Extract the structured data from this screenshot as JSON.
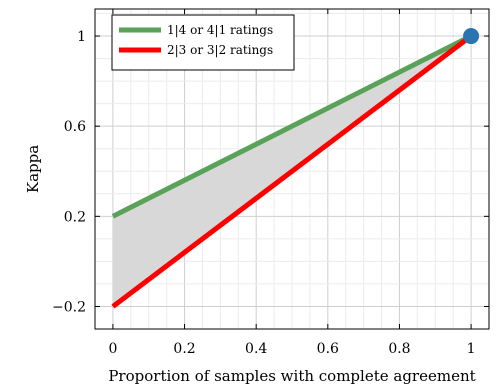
{
  "chart_data": {
    "type": "line",
    "xlabel": "Proportion of samples with complete agreement",
    "ylabel": "Kappa",
    "xlim": [
      -0.05,
      1.05
    ],
    "ylim": [
      -0.3,
      1.12
    ],
    "x_ticks": [
      0,
      0.2,
      0.4,
      0.6,
      0.8,
      1
    ],
    "x_tick_labels": [
      "0",
      "0.2",
      "0.4",
      "0.6",
      "0.8",
      "1"
    ],
    "y_ticks": [
      -0.2,
      0.2,
      0.6,
      1
    ],
    "y_tick_labels": [
      "−0.2",
      "0.2",
      "0.6",
      "1"
    ],
    "grid": true,
    "legend_position": "top-left",
    "series": [
      {
        "name": "1|4 or 4|1 ratings",
        "color": "#5aa25a",
        "x": [
          0,
          1
        ],
        "y": [
          0.2,
          1
        ]
      },
      {
        "name": "2|3 or 3|2 ratings",
        "color": "#ff0000",
        "x": [
          0,
          1
        ],
        "y": [
          -0.2,
          1
        ]
      }
    ],
    "shaded_region": {
      "between": [
        "1|4 or 4|1 ratings",
        "2|3 or 3|2 ratings"
      ],
      "color": "#d8d8d8"
    },
    "point": {
      "x": 1,
      "y": 1,
      "color": "#2a74b0"
    }
  }
}
